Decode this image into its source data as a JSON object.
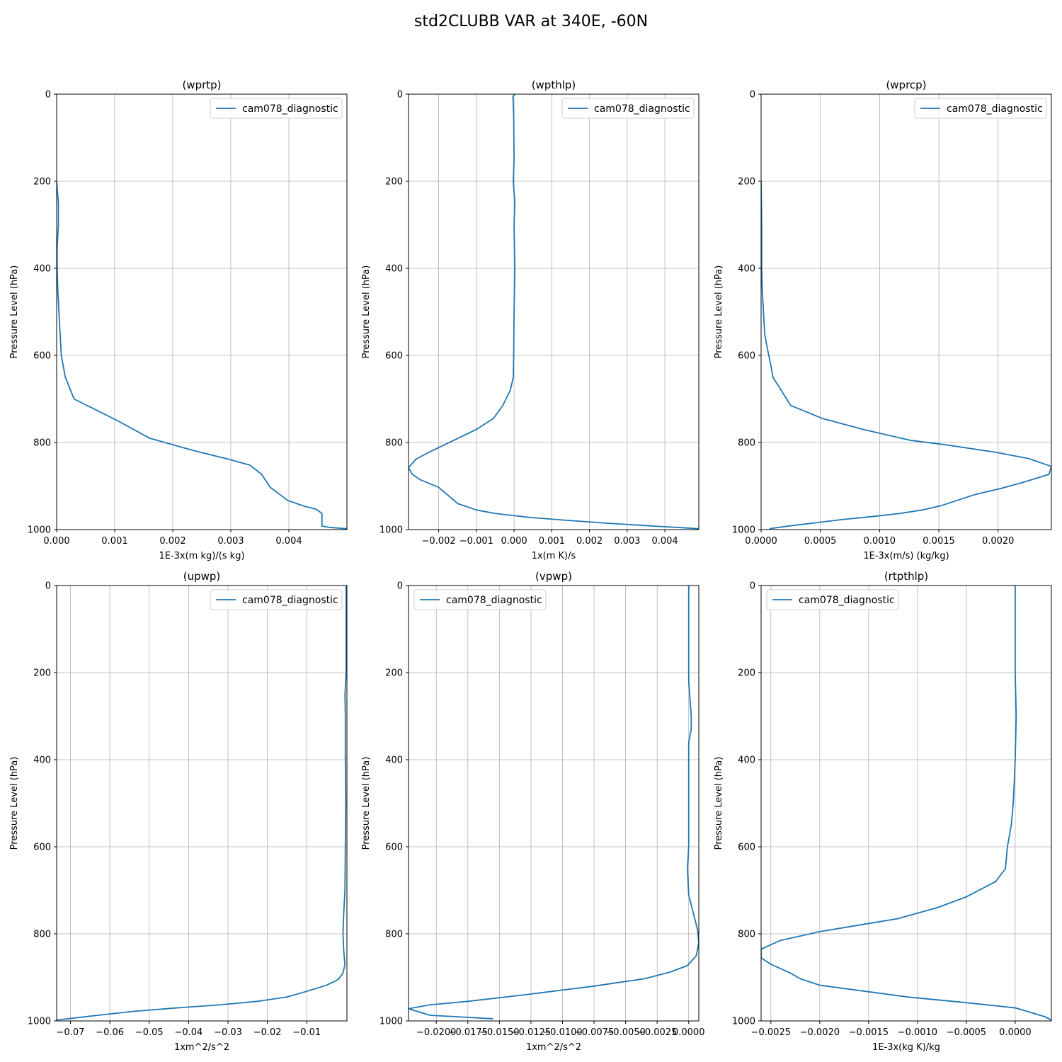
{
  "figure_title": "std2CLUBB VAR at 340E, -60N",
  "line_color": "#1f77b4",
  "grid_color": "#b0b0b0",
  "chart_data": [
    {
      "type": "line",
      "title": "(wprtp)",
      "xlabel": "1E-3x(m kg)/(s kg)",
      "ylabel": "Pressure Level (hPa)",
      "xlim": [
        0,
        0.005
      ],
      "ylim": [
        1000,
        0
      ],
      "xticks": [
        0,
        0.001,
        0.002,
        0.003,
        0.004
      ],
      "xtick_labels": [
        "0.000",
        "0.001",
        "0.002",
        "0.003",
        "0.004"
      ],
      "yticks": [
        0,
        200,
        400,
        600,
        800,
        1000
      ],
      "ytick_labels": [
        "0",
        "200",
        "400",
        "600",
        "800",
        "1000"
      ],
      "grid": true,
      "legend_position": "upper right",
      "series": [
        {
          "name": "cam078_diagnostic",
          "x": [
            0,
            3e-05,
            3e-05,
            1e-05,
            1e-05,
            2e-05,
            4e-05,
            6e-05,
            8e-05,
            0.00015,
            0.0003,
            0.0006,
            0.00105,
            0.0016,
            0.002,
            0.0024,
            0.00295,
            0.00333,
            0.00353,
            0.00368,
            0.00383,
            0.00398,
            0.00428,
            0.00447,
            0.00457,
            0.00457,
            0.0047,
            0.005
          ],
          "y": [
            200,
            250,
            300,
            350,
            400,
            450,
            500,
            550,
            600,
            650,
            700,
            720,
            750,
            790,
            805,
            820,
            838,
            852,
            873,
            903,
            918,
            933,
            947,
            953,
            963,
            992,
            995,
            998
          ]
        }
      ]
    },
    {
      "type": "line",
      "title": "(wpthlp)",
      "xlabel": "1x(m K)/s",
      "ylabel": "Pressure Level (hPa)",
      "xlim": [
        -0.0028,
        0.0049
      ],
      "ylim": [
        1000,
        0
      ],
      "xticks": [
        -0.002,
        -0.001,
        0,
        0.001,
        0.002,
        0.003,
        0.004
      ],
      "xtick_labels": [
        "−0.002",
        "−0.001",
        "0.000",
        "0.001",
        "0.002",
        "0.003",
        "0.004"
      ],
      "yticks": [
        0,
        200,
        400,
        600,
        800,
        1000
      ],
      "ytick_labels": [
        "0",
        "200",
        "400",
        "600",
        "800",
        "1000"
      ],
      "grid": true,
      "legend_position": "upper right",
      "series": [
        {
          "name": "cam078_diagnostic",
          "x": [
            2e-05,
            -3e-05,
            -1e-05,
            0,
            -2e-05,
            2e-05,
            0,
            1e-05,
            2e-05,
            0,
            -1e-05,
            -2e-05,
            -0.0001,
            -0.0003,
            -0.00055,
            -0.001,
            -0.0016,
            -0.0022,
            -0.0026,
            -0.0028,
            -0.0027,
            -0.0025,
            -0.002,
            -0.0017,
            -0.0015,
            -0.001,
            -0.0005,
            0.0004,
            0.0013,
            0.0024,
            0.0037,
            0.0049
          ],
          "y": [
            0,
            5,
            50,
            150,
            200,
            250,
            300,
            350,
            400,
            500,
            600,
            650,
            680,
            715,
            745,
            770,
            795,
            820,
            838,
            858,
            873,
            885,
            903,
            925,
            940,
            955,
            963,
            972,
            978,
            985,
            992,
            998
          ]
        }
      ]
    },
    {
      "type": "line",
      "title": "(wprcp)",
      "xlabel": "1E-3x(m/s) (kg/kg)",
      "ylabel": "Pressure Level (hPa)",
      "xlim": [
        0,
        0.00245
      ],
      "ylim": [
        1000,
        0
      ],
      "xticks": [
        0,
        0.0005,
        0.001,
        0.0015,
        0.002
      ],
      "xtick_labels": [
        "0.0000",
        "0.0005",
        "0.0010",
        "0.0015",
        "0.0020"
      ],
      "yticks": [
        0,
        200,
        400,
        600,
        800,
        1000
      ],
      "ytick_labels": [
        "0",
        "200",
        "400",
        "600",
        "800",
        "1000"
      ],
      "grid": true,
      "legend_position": "upper right",
      "series": [
        {
          "name": "cam078_diagnostic",
          "x": [
            0,
            5e-06,
            5e-06,
            1e-05,
            2e-05,
            3e-05,
            5e-05,
            8e-05,
            0.0001,
            0.00025,
            0.00052,
            0.00086,
            0.00126,
            0.00155,
            0.00197,
            0.00226,
            0.00245,
            0.00243,
            0.00223,
            0.00203,
            0.0018,
            0.00152,
            0.00136,
            0.00117,
            0.00094,
            0.00068,
            0.00044,
            0.00023,
            7e-05
          ],
          "y": [
            200,
            300,
            400,
            450,
            500,
            550,
            580,
            620,
            650,
            715,
            745,
            770,
            795,
            805,
            822,
            837,
            855,
            873,
            890,
            905,
            920,
            945,
            955,
            963,
            970,
            977,
            985,
            992,
            998
          ]
        }
      ]
    },
    {
      "type": "line",
      "title": "(upwp)",
      "xlabel": "1xm^2/s^2",
      "ylabel": "Pressure Level (hPa)",
      "xlim": [
        -0.0735,
        0.0002
      ],
      "ylim": [
        1000,
        0
      ],
      "xticks": [
        -0.07,
        -0.06,
        -0.05,
        -0.04,
        -0.03,
        -0.02,
        -0.01
      ],
      "xtick_labels": [
        "−0.07",
        "−0.06",
        "−0.05",
        "−0.04",
        "−0.03",
        "−0.02",
        "−0.01"
      ],
      "yticks": [
        0,
        200,
        400,
        600,
        800,
        1000
      ],
      "ytick_labels": [
        "0",
        "200",
        "400",
        "600",
        "800",
        "1000"
      ],
      "grid": true,
      "legend_position": "upper right",
      "series": [
        {
          "name": "cam078_diagnostic",
          "x": [
            0,
            0,
            -0.0003,
            -0.0002,
            -0.0002,
            -0.0001,
            -0.0002,
            -0.0003,
            -0.0006,
            -0.0008,
            -0.0006,
            -0.0003,
            -0.0008,
            -0.002,
            -0.005,
            -0.01,
            -0.015,
            -0.0225,
            -0.032,
            -0.043,
            -0.054,
            -0.064,
            -0.0735
          ],
          "y": [
            0,
            200,
            250,
            300,
            400,
            500,
            600,
            700,
            750,
            800,
            840,
            870,
            890,
            905,
            918,
            932,
            945,
            955,
            963,
            970,
            978,
            988,
            998
          ]
        }
      ]
    },
    {
      "type": "line",
      "title": "(vpwp)",
      "xlabel": "1xm^2/s^2",
      "ylabel": "Pressure Level (hPa)",
      "xlim": [
        -0.0222,
        0.0008
      ],
      "ylim": [
        1000,
        0
      ],
      "xticks": [
        -0.02,
        -0.0175,
        -0.015,
        -0.0125,
        -0.01,
        -0.0075,
        -0.005,
        -0.0025,
        0
      ],
      "xtick_labels": [
        "−0.0200",
        "−0.0175",
        "−0.0150",
        "−0.0125",
        "−0.0100",
        "−0.0075",
        "−0.0050",
        "−0.0025",
        "0.0000"
      ],
      "yticks": [
        0,
        200,
        400,
        600,
        800,
        1000
      ],
      "ytick_labels": [
        "0",
        "200",
        "400",
        "600",
        "800",
        "1000"
      ],
      "grid": true,
      "legend_position": "upper left",
      "series": [
        {
          "name": "cam078_diagnostic",
          "x": [
            0,
            0,
            0.0001,
            0.0002,
            0.0002,
            0,
            0,
            0,
            0,
            -0.0001,
            0,
            0.0003,
            0.0007,
            0.0008,
            0.0006,
            -0.0001,
            -0.0015,
            -0.0035,
            -0.0075,
            -0.013,
            -0.0175,
            -0.0205,
            -0.0222,
            -0.0205,
            -0.0155
          ],
          "y": [
            0,
            220,
            260,
            300,
            330,
            360,
            400,
            500,
            600,
            650,
            710,
            745,
            790,
            820,
            850,
            873,
            888,
            903,
            920,
            940,
            955,
            963,
            972,
            987,
            995
          ]
        }
      ]
    },
    {
      "type": "line",
      "title": "(rtpthlp)",
      "xlabel": "1E-3x(kg K)/kg",
      "ylabel": "Pressure Level (hPa)",
      "xlim": [
        -0.0026,
        0.00037
      ],
      "ylim": [
        1000,
        0
      ],
      "xticks": [
        -0.0025,
        -0.002,
        -0.0015,
        -0.001,
        -0.0005,
        0
      ],
      "xtick_labels": [
        "−0.0025",
        "−0.0020",
        "−0.0015",
        "−0.0010",
        "−0.0005",
        "0.0000"
      ],
      "yticks": [
        0,
        200,
        400,
        600,
        800,
        1000
      ],
      "ytick_labels": [
        "0",
        "200",
        "400",
        "600",
        "800",
        "1000"
      ],
      "grid": true,
      "legend_position": "upper left",
      "series": [
        {
          "name": "cam078_diagnostic",
          "x": [
            0,
            0,
            1e-05,
            0,
            -1e-05,
            -2e-05,
            -4e-05,
            -8e-05,
            -0.0001,
            -0.0002,
            -0.0005,
            -0.0008,
            -0.0012,
            -0.0016,
            -0.002,
            -0.0024,
            -0.0026,
            -0.0026,
            -0.0025,
            -0.0023,
            -0.0022,
            -0.002,
            -0.0016,
            -0.0011,
            -0.0005,
            0,
            0.0003,
            0.00037
          ],
          "y": [
            0,
            200,
            300,
            400,
            450,
            500,
            550,
            600,
            650,
            680,
            715,
            740,
            765,
            780,
            795,
            815,
            835,
            855,
            870,
            890,
            903,
            918,
            930,
            945,
            958,
            970,
            990,
            998
          ]
        }
      ]
    }
  ]
}
